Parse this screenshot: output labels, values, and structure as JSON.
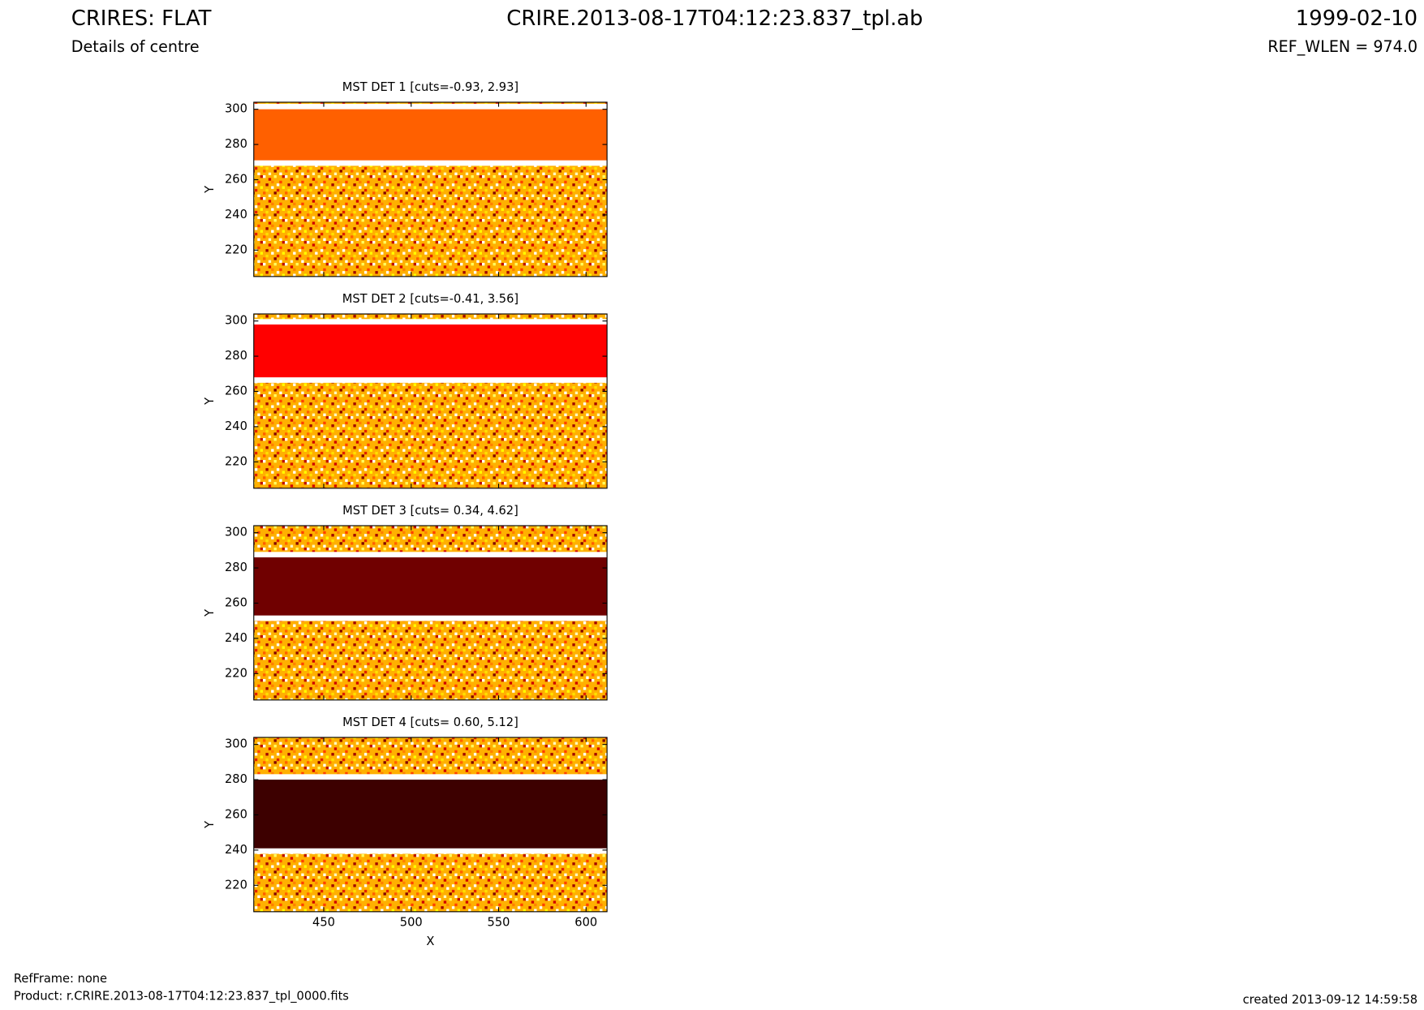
{
  "header": {
    "title": "CRIRES: FLAT",
    "subtitle": "Details of centre",
    "file": "CRIRE.2013-08-17T04:12:23.837_tpl.ab",
    "date": "1999-02-10",
    "ref_wlen": "REF_WLEN = 974.0"
  },
  "chart_data": [
    {
      "type": "heatmap",
      "title": "MST DET 1 [cuts=-0.93, 2.93]",
      "ylabel": "Y",
      "xlim": [
        410,
        612
      ],
      "ylim": [
        205,
        304
      ],
      "xticks": [
        450,
        500,
        550,
        600
      ],
      "yticks": [
        220,
        240,
        260,
        280,
        300
      ],
      "bands": [
        {
          "y": [
            271,
            300
          ],
          "color": "#ff6000"
        }
      ]
    },
    {
      "type": "heatmap",
      "title": "MST DET 2 [cuts=-0.41, 3.56]",
      "ylabel": "Y",
      "xlim": [
        410,
        612
      ],
      "ylim": [
        205,
        304
      ],
      "xticks": [
        450,
        500,
        550,
        600
      ],
      "yticks": [
        220,
        240,
        260,
        280,
        300
      ],
      "bands": [
        {
          "y": [
            268,
            298
          ],
          "color": "#ff0000"
        }
      ]
    },
    {
      "type": "heatmap",
      "title": "MST DET 3 [cuts= 0.34, 4.62]",
      "ylabel": "Y",
      "xlim": [
        410,
        612
      ],
      "ylim": [
        205,
        304
      ],
      "xticks": [
        450,
        500,
        550,
        600
      ],
      "yticks": [
        220,
        240,
        260,
        280,
        300
      ],
      "bands": [
        {
          "y": [
            253,
            286
          ],
          "color": "#700000"
        }
      ]
    },
    {
      "type": "heatmap",
      "title": "MST DET 4 [cuts= 0.60, 5.12]",
      "ylabel": "Y",
      "xlabel": "X",
      "xlim": [
        410,
        612
      ],
      "ylim": [
        205,
        304
      ],
      "xticks": [
        450,
        500,
        550,
        600
      ],
      "yticks": [
        220,
        240,
        260,
        280,
        300
      ],
      "bands": [
        {
          "y": [
            241,
            280
          ],
          "color": "#3d0000"
        }
      ]
    }
  ],
  "footer": {
    "refframe": "RefFrame: none",
    "product": "Product: r.CRIRE.2013-08-17T04:12:23.837_tpl_0000.fits",
    "created": "created 2013-09-12 14:59:58"
  }
}
